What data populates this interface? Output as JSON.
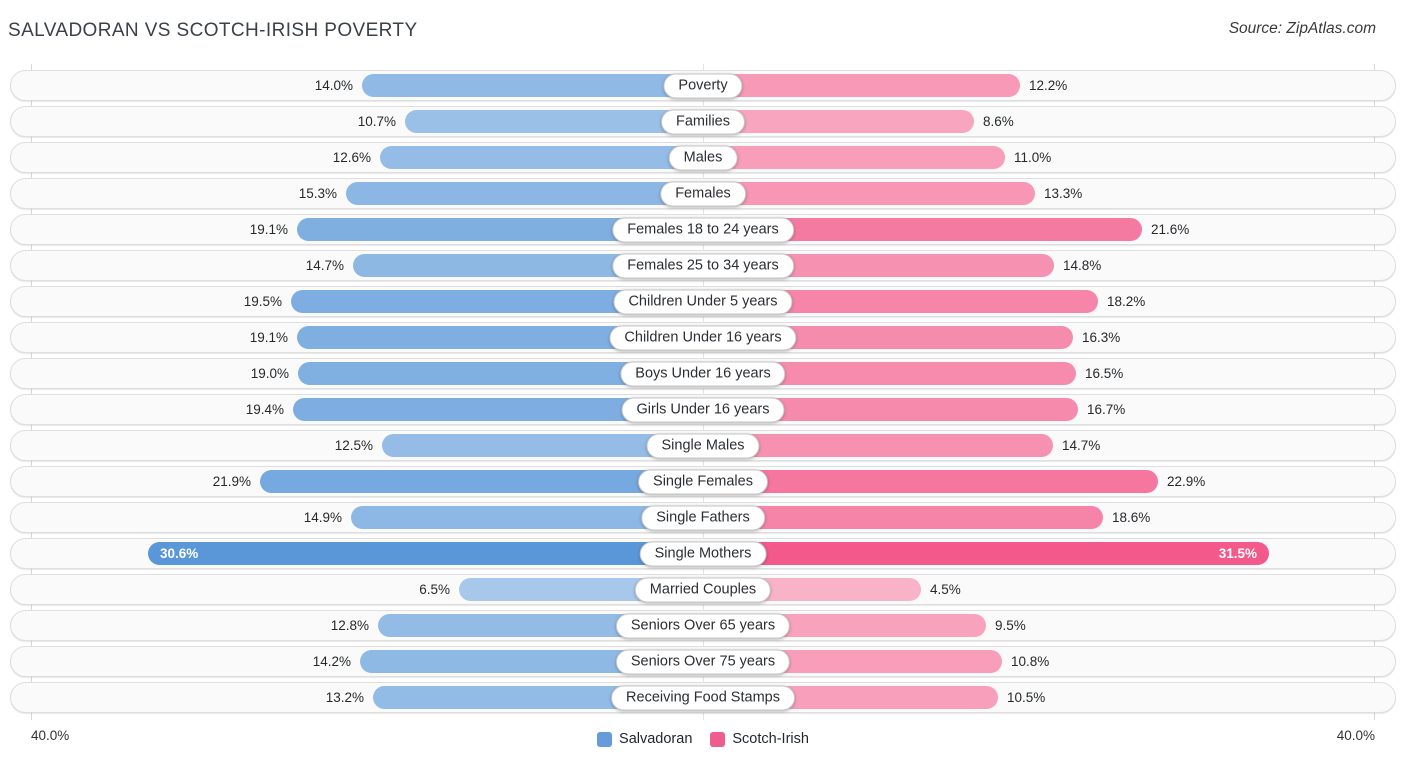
{
  "header": {
    "title": "SALVADORAN VS SCOTCH-IRISH POVERTY",
    "source": "Source: ZipAtlas.com"
  },
  "chart_data": {
    "type": "bar",
    "orientation": "horizontal-diverging",
    "title": "SALVADORAN VS SCOTCH-IRISH POVERTY",
    "value_suffix": "%",
    "categories": [
      "Poverty",
      "Families",
      "Males",
      "Females",
      "Females 18 to 24 years",
      "Females 25 to 34 years",
      "Children Under 5 years",
      "Children Under 16 years",
      "Boys Under 16 years",
      "Girls Under 16 years",
      "Single Males",
      "Single Females",
      "Single Fathers",
      "Single Mothers",
      "Married Couples",
      "Seniors Over 65 years",
      "Seniors Over 75 years",
      "Receiving Food Stamps"
    ],
    "series": [
      {
        "name": "Salvadoran",
        "color": "#659cda",
        "values": [
          14.0,
          10.7,
          12.6,
          15.3,
          19.1,
          14.7,
          19.5,
          19.1,
          19.0,
          19.4,
          12.5,
          21.9,
          14.9,
          30.6,
          6.5,
          12.8,
          14.2,
          13.2
        ]
      },
      {
        "name": "Scotch-Irish",
        "color": "#ef5d8f",
        "values": [
          12.2,
          8.6,
          11.0,
          13.3,
          21.6,
          14.8,
          18.2,
          16.3,
          16.5,
          16.7,
          14.7,
          22.9,
          18.6,
          31.5,
          4.5,
          9.5,
          10.8,
          10.5
        ]
      }
    ],
    "axis": {
      "max": 40.0,
      "left_label": "40.0%",
      "right_label": "40.0%"
    },
    "legend": [
      "Salvadoran",
      "Scotch-Irish"
    ],
    "legend_position": "bottom-center",
    "grid": "edge-and-center-verticals"
  }
}
